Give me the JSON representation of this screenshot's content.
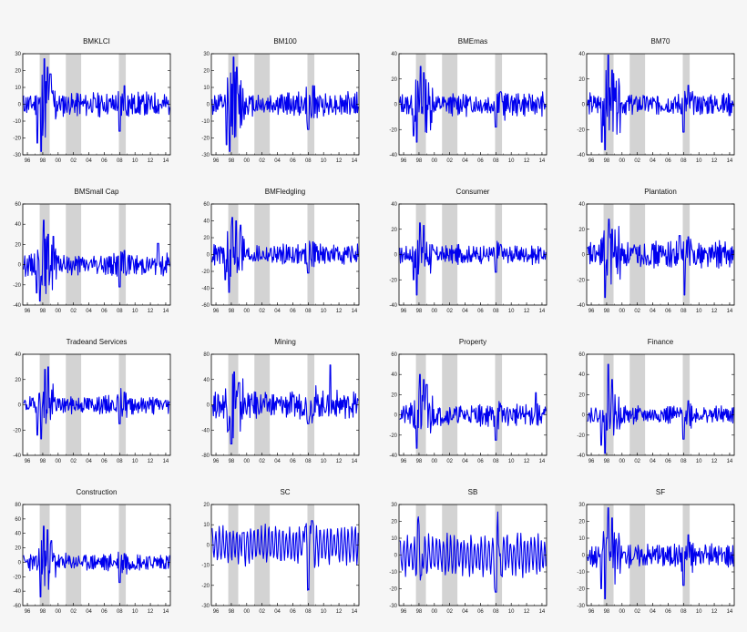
{
  "figure": {
    "recession_bands": [
      [
        1997.6,
        1998.9
      ],
      [
        2001.0,
        2003.0
      ],
      [
        2007.9,
        2008.8
      ]
    ],
    "x_range": [
      1995.4,
      2014.6
    ],
    "x_ticks": [
      1996,
      1998,
      2000,
      2002,
      2004,
      2006,
      2008,
      2010,
      2012,
      2014
    ],
    "x_tick_labels": [
      "96",
      "98",
      "00",
      "02",
      "04",
      "06",
      "08",
      "10",
      "12",
      "14"
    ],
    "colors": {
      "series": "#0000ee",
      "band": "#d3d3d3",
      "frame": "#000000",
      "plot_bg": "#ffffff"
    }
  },
  "chart_data": [
    {
      "type": "line",
      "title": "BMKLCI",
      "ylim": [
        -30,
        30
      ],
      "yticks": [
        -30,
        -20,
        -10,
        0,
        10,
        20,
        30
      ],
      "seed": 11,
      "spikes": [
        [
          1997.8,
          -28
        ],
        [
          1998.2,
          27
        ],
        [
          1997.3,
          -23
        ],
        [
          1998.6,
          22
        ],
        [
          1999.0,
          18
        ],
        [
          2008.0,
          -16
        ],
        [
          2008.6,
          11
        ]
      ],
      "noise": 4
    },
    {
      "type": "line",
      "title": "BM100",
      "ylim": [
        -30,
        30
      ],
      "yticks": [
        -30,
        -20,
        -10,
        0,
        10,
        20,
        30
      ],
      "seed": 12,
      "spikes": [
        [
          1997.8,
          -28
        ],
        [
          1998.3,
          28
        ],
        [
          1997.4,
          -24
        ],
        [
          1998.7,
          22
        ],
        [
          2008.0,
          -15
        ],
        [
          2008.6,
          11
        ]
      ],
      "noise": 4
    },
    {
      "type": "line",
      "title": "BMEmas",
      "ylim": [
        -40,
        40
      ],
      "yticks": [
        -40,
        -20,
        0,
        20,
        40
      ],
      "seed": 13,
      "spikes": [
        [
          1997.7,
          -30
        ],
        [
          1998.2,
          30
        ],
        [
          1998.6,
          25
        ],
        [
          1997.3,
          -25
        ],
        [
          2008.0,
          -18
        ],
        [
          2008.6,
          10
        ]
      ],
      "noise": 5
    },
    {
      "type": "line",
      "title": "BM70",
      "ylim": [
        -40,
        40
      ],
      "yticks": [
        -40,
        -20,
        0,
        20,
        40
      ],
      "seed": 14,
      "spikes": [
        [
          1997.8,
          -36
        ],
        [
          1998.2,
          39
        ],
        [
          1998.7,
          27
        ],
        [
          1997.4,
          -30
        ],
        [
          2008.0,
          -22
        ],
        [
          2008.6,
          15
        ]
      ],
      "noise": 5
    },
    {
      "type": "line",
      "title": "BMSmall Cap",
      "ylim": [
        -40,
        60
      ],
      "yticks": [
        -40,
        -20,
        0,
        20,
        40,
        60
      ],
      "seed": 15,
      "spikes": [
        [
          1997.6,
          -36
        ],
        [
          1998.1,
          44
        ],
        [
          1998.7,
          30
        ],
        [
          1999.4,
          28
        ],
        [
          1997.2,
          -28
        ],
        [
          2008.0,
          -22
        ],
        [
          2008.6,
          14
        ],
        [
          2013.0,
          21
        ]
      ],
      "noise": 6
    },
    {
      "type": "line",
      "title": "BMFledgling",
      "ylim": [
        -60,
        60
      ],
      "yticks": [
        -60,
        -40,
        -20,
        0,
        20,
        40,
        60
      ],
      "seed": 16,
      "spikes": [
        [
          1997.7,
          -45
        ],
        [
          1998.1,
          44
        ],
        [
          1998.6,
          40
        ],
        [
          1999.2,
          35
        ],
        [
          1997.2,
          -30
        ],
        [
          2008.0,
          -22
        ],
        [
          2008.6,
          15
        ]
      ],
      "noise": 7
    },
    {
      "type": "line",
      "title": "Consumer",
      "ylim": [
        -40,
        40
      ],
      "yticks": [
        -40,
        -20,
        0,
        20,
        40
      ],
      "seed": 17,
      "spikes": [
        [
          1997.7,
          -32
        ],
        [
          1998.1,
          25
        ],
        [
          1998.6,
          23
        ],
        [
          1997.3,
          -20
        ],
        [
          2008.0,
          -14
        ],
        [
          2008.6,
          8
        ]
      ],
      "noise": 4
    },
    {
      "type": "line",
      "title": "Plantation",
      "ylim": [
        -40,
        40
      ],
      "yticks": [
        -40,
        -20,
        0,
        20,
        40
      ],
      "seed": 18,
      "spikes": [
        [
          1997.8,
          -34
        ],
        [
          1998.3,
          28
        ],
        [
          1998.7,
          20
        ],
        [
          2008.1,
          -32
        ],
        [
          2008.6,
          14
        ],
        [
          2007.5,
          15
        ]
      ],
      "noise": 6
    },
    {
      "type": "line",
      "title": "Tradeand Services",
      "ylim": [
        -40,
        40
      ],
      "yticks": [
        -40,
        -20,
        0,
        20,
        40
      ],
      "seed": 19,
      "spikes": [
        [
          1997.8,
          -27
        ],
        [
          1998.3,
          28
        ],
        [
          1998.7,
          30
        ],
        [
          1997.3,
          -24
        ],
        [
          2008.0,
          -15
        ],
        [
          2008.6,
          10
        ]
      ],
      "noise": 4
    },
    {
      "type": "line",
      "title": "Mining",
      "ylim": [
        -80,
        80
      ],
      "yticks": [
        -80,
        -40,
        0,
        40,
        80
      ],
      "seed": 20,
      "spikes": [
        [
          1998.0,
          -62
        ],
        [
          1998.4,
          52
        ],
        [
          1997.6,
          -40
        ],
        [
          2010.9,
          63
        ],
        [
          2008.0,
          -30
        ],
        [
          1999.0,
          35
        ]
      ],
      "noise": 12
    },
    {
      "type": "line",
      "title": "Property",
      "ylim": [
        -40,
        60
      ],
      "yticks": [
        -40,
        -20,
        0,
        20,
        40,
        60
      ],
      "seed": 21,
      "spikes": [
        [
          1997.7,
          -33
        ],
        [
          1998.1,
          40
        ],
        [
          1998.6,
          35
        ],
        [
          1999.0,
          30
        ],
        [
          2008.0,
          -25
        ],
        [
          2013.2,
          22
        ]
      ],
      "noise": 6
    },
    {
      "type": "line",
      "title": "Finance",
      "ylim": [
        -40,
        60
      ],
      "yticks": [
        -40,
        -20,
        0,
        20,
        40,
        60
      ],
      "seed": 22,
      "spikes": [
        [
          1997.8,
          -38
        ],
        [
          1998.2,
          50
        ],
        [
          1998.7,
          35
        ],
        [
          1997.3,
          -30
        ],
        [
          2008.0,
          -24
        ],
        [
          2008.6,
          14
        ]
      ],
      "noise": 5
    },
    {
      "type": "line",
      "title": "Construction",
      "ylim": [
        -60,
        80
      ],
      "yticks": [
        -60,
        -40,
        -20,
        0,
        20,
        40,
        60,
        80
      ],
      "seed": 23,
      "spikes": [
        [
          1997.7,
          -48
        ],
        [
          1998.1,
          50
        ],
        [
          1998.6,
          45
        ],
        [
          1999.1,
          30
        ],
        [
          2008.0,
          -28
        ],
        [
          2008.6,
          12
        ]
      ],
      "noise": 7
    },
    {
      "type": "line",
      "title": "SC",
      "ylim": [
        -30,
        20
      ],
      "yticks": [
        -30,
        -20,
        -10,
        0,
        10,
        20
      ],
      "seed": 24,
      "spikes": [
        [
          2008.0,
          -20
        ],
        [
          2008.5,
          12
        ],
        [
          2007.6,
          9
        ],
        [
          1999.5,
          6
        ]
      ],
      "noise": 1.2,
      "smooth": true
    },
    {
      "type": "line",
      "title": "SB",
      "ylim": [
        -30,
        30
      ],
      "yticks": [
        -30,
        -20,
        -10,
        0,
        10,
        20,
        30
      ],
      "seed": 25,
      "spikes": [
        [
          1997.9,
          20
        ],
        [
          1998.3,
          -12
        ],
        [
          2008.2,
          21
        ],
        [
          2008.0,
          -22
        ],
        [
          2008.7,
          -12
        ]
      ],
      "noise": 1.5,
      "smooth": true
    },
    {
      "type": "line",
      "title": "SF",
      "ylim": [
        -30,
        30
      ],
      "yticks": [
        -30,
        -20,
        -10,
        0,
        10,
        20,
        30
      ],
      "seed": 26,
      "spikes": [
        [
          1997.8,
          -26
        ],
        [
          1998.2,
          28
        ],
        [
          1998.7,
          22
        ],
        [
          1997.3,
          -20
        ],
        [
          2008.0,
          -18
        ],
        [
          2008.6,
          12
        ]
      ],
      "noise": 4
    }
  ]
}
